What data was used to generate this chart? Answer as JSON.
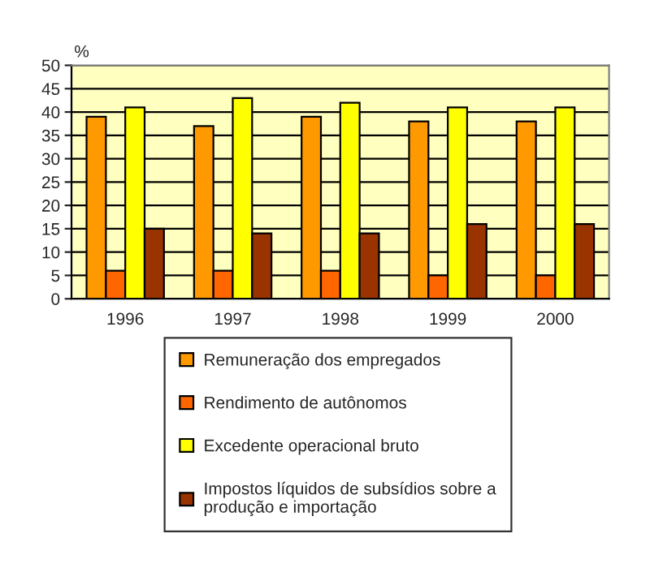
{
  "chart_data": {
    "type": "bar",
    "ylabel": "%",
    "categories": [
      "1996",
      "1997",
      "1998",
      "1999",
      "2000"
    ],
    "series": [
      {
        "name": "Remuneração dos empregados",
        "color": "#ff9900",
        "values": [
          39,
          37,
          39,
          38,
          38
        ]
      },
      {
        "name": "Rendimento de autônomos",
        "color": "#ff6600",
        "values": [
          6,
          6,
          6,
          5,
          5
        ]
      },
      {
        "name": "Excedente operacional bruto",
        "color": "#ffff00",
        "values": [
          41,
          43,
          42,
          41,
          41
        ]
      },
      {
        "name": "Impostos líquidos de subsídios sobre a\nprodução e importação",
        "color": "#993300",
        "values": [
          15,
          14,
          14,
          16,
          16
        ]
      }
    ],
    "ylim": [
      0,
      50
    ],
    "yticks": [
      0,
      5,
      10,
      15,
      20,
      25,
      30,
      35,
      40,
      45,
      50
    ],
    "grid": "y",
    "legend": "bottom"
  }
}
